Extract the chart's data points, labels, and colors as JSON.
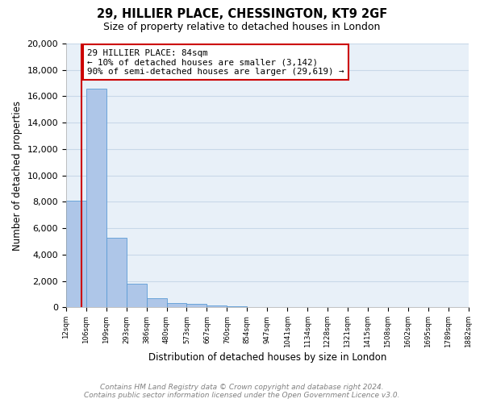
{
  "title": "29, HILLIER PLACE, CHESSINGTON, KT9 2GF",
  "subtitle": "Size of property relative to detached houses in London",
  "xlabel": "Distribution of detached houses by size in London",
  "ylabel": "Number of detached properties",
  "bar_heights": [
    8100,
    16600,
    5300,
    1800,
    700,
    350,
    250,
    150,
    100,
    50,
    0,
    0,
    0,
    0,
    0,
    0,
    0,
    0,
    0,
    0
  ],
  "bar_color": "#aec6e8",
  "bar_edgecolor": "#5b9bd5",
  "property_line_x": 0.78,
  "property_line_color": "#cc0000",
  "annotation_title": "29 HILLIER PLACE: 84sqm",
  "annotation_line1": "← 10% of detached houses are smaller (3,142)",
  "annotation_line2": "90% of semi-detached houses are larger (29,619) →",
  "annotation_box_color": "#cc0000",
  "ylim": [
    0,
    20000
  ],
  "yticks": [
    0,
    2000,
    4000,
    6000,
    8000,
    10000,
    12000,
    14000,
    16000,
    18000,
    20000
  ],
  "tick_labels": [
    "12sqm",
    "106sqm",
    "199sqm",
    "293sqm",
    "386sqm",
    "480sqm",
    "573sqm",
    "667sqm",
    "760sqm",
    "854sqm",
    "947sqm",
    "1041sqm",
    "1134sqm",
    "1228sqm",
    "1321sqm",
    "1415sqm",
    "1508sqm",
    "1602sqm",
    "1695sqm",
    "1789sqm",
    "1882sqm"
  ],
  "grid_color": "#c8d8e8",
  "background_color": "#e8f0f8",
  "footer_line1": "Contains HM Land Registry data © Crown copyright and database right 2024.",
  "footer_line2": "Contains public sector information licensed under the Open Government Licence v3.0.",
  "n_bins": 20
}
